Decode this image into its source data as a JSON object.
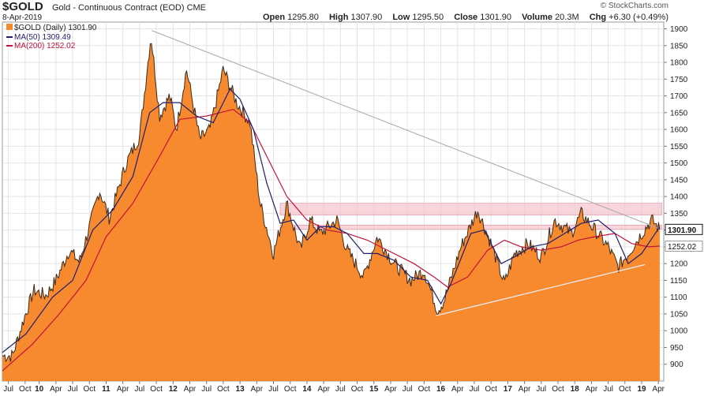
{
  "header": {
    "ticker": "$GOLD",
    "description": "Gold - Continuous Contract (EOD)",
    "exchange": "CME",
    "date": "8-Apr-2019",
    "credit": "© StockCharts.com",
    "open_label": "Open",
    "open": "1295.80",
    "high_label": "High",
    "high": "1307.90",
    "low_label": "Low",
    "low": "1295.50",
    "close_label": "Close",
    "close": "1301.90",
    "volume_label": "Volume",
    "volume": "20.3M",
    "chg_label": "Chg",
    "chg": "+6.30 (+0.49%)"
  },
  "legend": {
    "price": "$GOLD (Daily) 1301.90",
    "ma50": "MA(50) 1309.49",
    "ma200": "MA(200) 1252.02"
  },
  "colors": {
    "area": "#f7892e",
    "price_line": "#3a2a1a",
    "ma50": "#1f1f6e",
    "ma200": "#c0143c",
    "band": "#f6c5cf",
    "trend_line": "#c8c8c8",
    "grid": "#e4e4e4"
  },
  "chart_data": {
    "type": "area",
    "title": "$GOLD (Daily)",
    "ylim": [
      850,
      1920
    ],
    "y_ticks": [
      900,
      950,
      1000,
      1050,
      1100,
      1150,
      1200,
      1250,
      1300,
      1350,
      1400,
      1450,
      1500,
      1550,
      1600,
      1650,
      1700,
      1750,
      1800,
      1850,
      1900
    ],
    "x_range": [
      2009.45,
      2019.33
    ],
    "x_ticks": [
      {
        "t": 2009.54,
        "label": "Jul",
        "bold": false
      },
      {
        "t": 2009.79,
        "label": "Oct",
        "bold": false
      },
      {
        "t": 2010.0,
        "label": "10",
        "bold": true
      },
      {
        "t": 2010.25,
        "label": "Apr",
        "bold": false
      },
      {
        "t": 2010.5,
        "label": "Jul",
        "bold": false
      },
      {
        "t": 2010.75,
        "label": "Oct",
        "bold": false
      },
      {
        "t": 2011.0,
        "label": "11",
        "bold": true
      },
      {
        "t": 2011.25,
        "label": "Apr",
        "bold": false
      },
      {
        "t": 2011.5,
        "label": "Jul",
        "bold": false
      },
      {
        "t": 2011.75,
        "label": "Oct",
        "bold": false
      },
      {
        "t": 2012.0,
        "label": "12",
        "bold": true
      },
      {
        "t": 2012.25,
        "label": "Apr",
        "bold": false
      },
      {
        "t": 2012.5,
        "label": "Jul",
        "bold": false
      },
      {
        "t": 2012.75,
        "label": "Oct",
        "bold": false
      },
      {
        "t": 2013.0,
        "label": "13",
        "bold": true
      },
      {
        "t": 2013.25,
        "label": "Apr",
        "bold": false
      },
      {
        "t": 2013.5,
        "label": "Jul",
        "bold": false
      },
      {
        "t": 2013.75,
        "label": "Oct",
        "bold": false
      },
      {
        "t": 2014.0,
        "label": "14",
        "bold": true
      },
      {
        "t": 2014.25,
        "label": "Apr",
        "bold": false
      },
      {
        "t": 2014.5,
        "label": "Jul",
        "bold": false
      },
      {
        "t": 2014.75,
        "label": "Oct",
        "bold": false
      },
      {
        "t": 2015.0,
        "label": "15",
        "bold": true
      },
      {
        "t": 2015.25,
        "label": "Apr",
        "bold": false
      },
      {
        "t": 2015.5,
        "label": "Jul",
        "bold": false
      },
      {
        "t": 2015.75,
        "label": "Oct",
        "bold": false
      },
      {
        "t": 2016.0,
        "label": "16",
        "bold": true
      },
      {
        "t": 2016.25,
        "label": "Apr",
        "bold": false
      },
      {
        "t": 2016.5,
        "label": "Jul",
        "bold": false
      },
      {
        "t": 2016.75,
        "label": "Oct",
        "bold": false
      },
      {
        "t": 2017.0,
        "label": "17",
        "bold": true
      },
      {
        "t": 2017.25,
        "label": "Apr",
        "bold": false
      },
      {
        "t": 2017.5,
        "label": "Jul",
        "bold": false
      },
      {
        "t": 2017.75,
        "label": "Oct",
        "bold": false
      },
      {
        "t": 2018.0,
        "label": "18",
        "bold": true
      },
      {
        "t": 2018.25,
        "label": "Apr",
        "bold": false
      },
      {
        "t": 2018.5,
        "label": "Jul",
        "bold": false
      },
      {
        "t": 2018.75,
        "label": "Oct",
        "bold": false
      },
      {
        "t": 2019.0,
        "label": "19",
        "bold": true
      },
      {
        "t": 2019.25,
        "label": "Apr",
        "bold": false
      }
    ],
    "series": [
      {
        "name": "$GOLD (Daily)",
        "t": [
          2009.45,
          2009.6,
          2009.78,
          2009.92,
          2010.1,
          2010.25,
          2010.45,
          2010.6,
          2010.8,
          2010.9,
          2011.05,
          2011.3,
          2011.5,
          2011.67,
          2011.8,
          2011.95,
          2012.05,
          2012.2,
          2012.4,
          2012.55,
          2012.75,
          2012.95,
          2013.15,
          2013.3,
          2013.5,
          2013.7,
          2013.9,
          2014.05,
          2014.2,
          2014.45,
          2014.6,
          2014.85,
          2015.05,
          2015.3,
          2015.55,
          2015.75,
          2015.95,
          2016.05,
          2016.3,
          2016.55,
          2016.75,
          2016.95,
          2017.1,
          2017.3,
          2017.5,
          2017.7,
          2017.95,
          2018.1,
          2018.3,
          2018.5,
          2018.65,
          2018.8,
          2019.0,
          2019.15,
          2019.27
        ],
        "values": [
          925,
          925,
          1040,
          1120,
          1105,
          1150,
          1240,
          1205,
          1345,
          1420,
          1335,
          1500,
          1580,
          1880,
          1640,
          1700,
          1600,
          1780,
          1570,
          1600,
          1780,
          1680,
          1620,
          1380,
          1230,
          1380,
          1240,
          1330,
          1290,
          1330,
          1240,
          1160,
          1280,
          1200,
          1150,
          1180,
          1060,
          1090,
          1250,
          1360,
          1260,
          1140,
          1230,
          1260,
          1220,
          1330,
          1290,
          1350,
          1300,
          1250,
          1190,
          1230,
          1290,
          1330,
          1301.9
        ]
      },
      {
        "name": "MA(50)",
        "t": [
          2009.45,
          2009.8,
          2010.2,
          2010.5,
          2010.8,
          2011.1,
          2011.4,
          2011.65,
          2011.85,
          2012.1,
          2012.35,
          2012.6,
          2012.85,
          2013.0,
          2013.2,
          2013.4,
          2013.6,
          2013.8,
          2014.0,
          2014.2,
          2014.4,
          2014.6,
          2014.85,
          2015.05,
          2015.3,
          2015.55,
          2015.8,
          2016.0,
          2016.15,
          2016.45,
          2016.65,
          2016.9,
          2017.1,
          2017.35,
          2017.6,
          2017.85,
          2018.1,
          2018.35,
          2018.6,
          2018.8,
          2019.0,
          2019.27
        ],
        "values": [
          935,
          990,
          1100,
          1150,
          1300,
          1360,
          1460,
          1650,
          1680,
          1680,
          1640,
          1620,
          1720,
          1690,
          1600,
          1440,
          1320,
          1330,
          1270,
          1310,
          1310,
          1290,
          1230,
          1230,
          1210,
          1160,
          1150,
          1080,
          1140,
          1290,
          1300,
          1200,
          1220,
          1250,
          1260,
          1290,
          1320,
          1330,
          1290,
          1200,
          1230,
          1309.49
        ]
      },
      {
        "name": "MA(200)",
        "t": [
          2009.45,
          2009.9,
          2010.3,
          2010.7,
          2011.0,
          2011.4,
          2011.8,
          2012.1,
          2012.5,
          2012.9,
          2013.15,
          2013.4,
          2013.7,
          2014.0,
          2014.3,
          2014.6,
          2014.9,
          2015.3,
          2015.6,
          2015.9,
          2016.1,
          2016.4,
          2016.7,
          2016.95,
          2017.2,
          2017.5,
          2017.8,
          2018.05,
          2018.3,
          2018.6,
          2018.85,
          2019.1,
          2019.27
        ],
        "values": [
          880,
          960,
          1050,
          1150,
          1280,
          1380,
          1520,
          1630,
          1640,
          1660,
          1620,
          1520,
          1400,
          1330,
          1300,
          1290,
          1270,
          1230,
          1200,
          1160,
          1130,
          1160,
          1240,
          1270,
          1250,
          1240,
          1250,
          1270,
          1280,
          1290,
          1260,
          1250,
          1252.02
        ]
      }
    ],
    "overlays": {
      "trendline_down": {
        "from": [
          2011.68,
          1895
        ],
        "to": [
          2019.25,
          1305
        ]
      },
      "trendline_up": {
        "from": [
          2015.93,
          1045
        ],
        "to": [
          2019.05,
          1197
        ]
      },
      "resistance_band_1": {
        "t_start": 2013.6,
        "t_end": 2019.3,
        "y_low": 1345,
        "y_high": 1380
      },
      "resistance_band_2": {
        "t_start": 2013.6,
        "t_end": 2019.3,
        "y_low": 1303,
        "y_high": 1315
      }
    },
    "price_tags": [
      {
        "value": "1301.90",
        "y": 1301.9,
        "style": "dark"
      },
      {
        "value": "1252.02",
        "y": 1252.02,
        "style": "light"
      }
    ]
  }
}
